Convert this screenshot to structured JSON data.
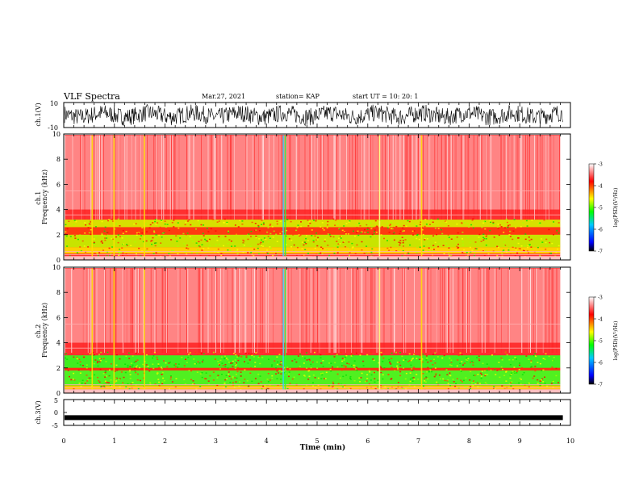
{
  "header": {
    "title": "VLF Spectra",
    "date": "Mar.27, 2021",
    "station": "station= KAP",
    "start": "start  UT  =   10: 20: 1"
  },
  "chart_data": [
    {
      "type": "line",
      "panel": "ch1-waveform",
      "ylabel": "ch.1(V)",
      "ylim": [
        -10,
        10
      ],
      "yticks": [
        "10",
        "-10"
      ],
      "xlim": [
        0,
        10
      ],
      "series_color": "#000000",
      "description_values": "noise waveform approx between -8 and 8 V"
    },
    {
      "type": "heatmap",
      "panel": "ch1-spectrogram",
      "ylabel": "ch.1\nFrequency (kHz)",
      "ylim": [
        0,
        10
      ],
      "yticks": [
        "0",
        "2",
        "4",
        "6",
        "8",
        "10"
      ],
      "xlim": [
        0,
        9.8
      ],
      "colorbar": {
        "label": "log(PSD)(V²/Hz)",
        "range": [
          -7,
          -3
        ],
        "ticks": [
          "-3",
          "-4",
          "-5",
          "-6",
          "-7"
        ]
      }
    },
    {
      "type": "heatmap",
      "panel": "ch2-spectrogram",
      "ylabel": "ch.2\nFrequency (kHz)",
      "ylim": [
        0,
        10
      ],
      "yticks": [
        "0",
        "2",
        "4",
        "6",
        "8",
        "10"
      ],
      "xlim": [
        0,
        9.8
      ],
      "colorbar": {
        "label": "log(PSD)(V²/Hz)",
        "range": [
          -7,
          -3
        ],
        "ticks": [
          "-3",
          "-4",
          "-5",
          "-6",
          "-7"
        ]
      }
    },
    {
      "type": "line",
      "panel": "ch3-waveform",
      "ylabel": "ch.3(V)",
      "ylim": [
        -5,
        5
      ],
      "yticks": [
        "5",
        "0",
        "-5"
      ],
      "xlim": [
        0,
        10
      ],
      "series_color": "#000000",
      "level": -2
    }
  ],
  "xaxis": {
    "label": "Time (min)",
    "ticks": [
      "0",
      "1",
      "2",
      "3",
      "4",
      "5",
      "6",
      "7",
      "8",
      "9",
      "10"
    ],
    "range": [
      0,
      10
    ]
  }
}
